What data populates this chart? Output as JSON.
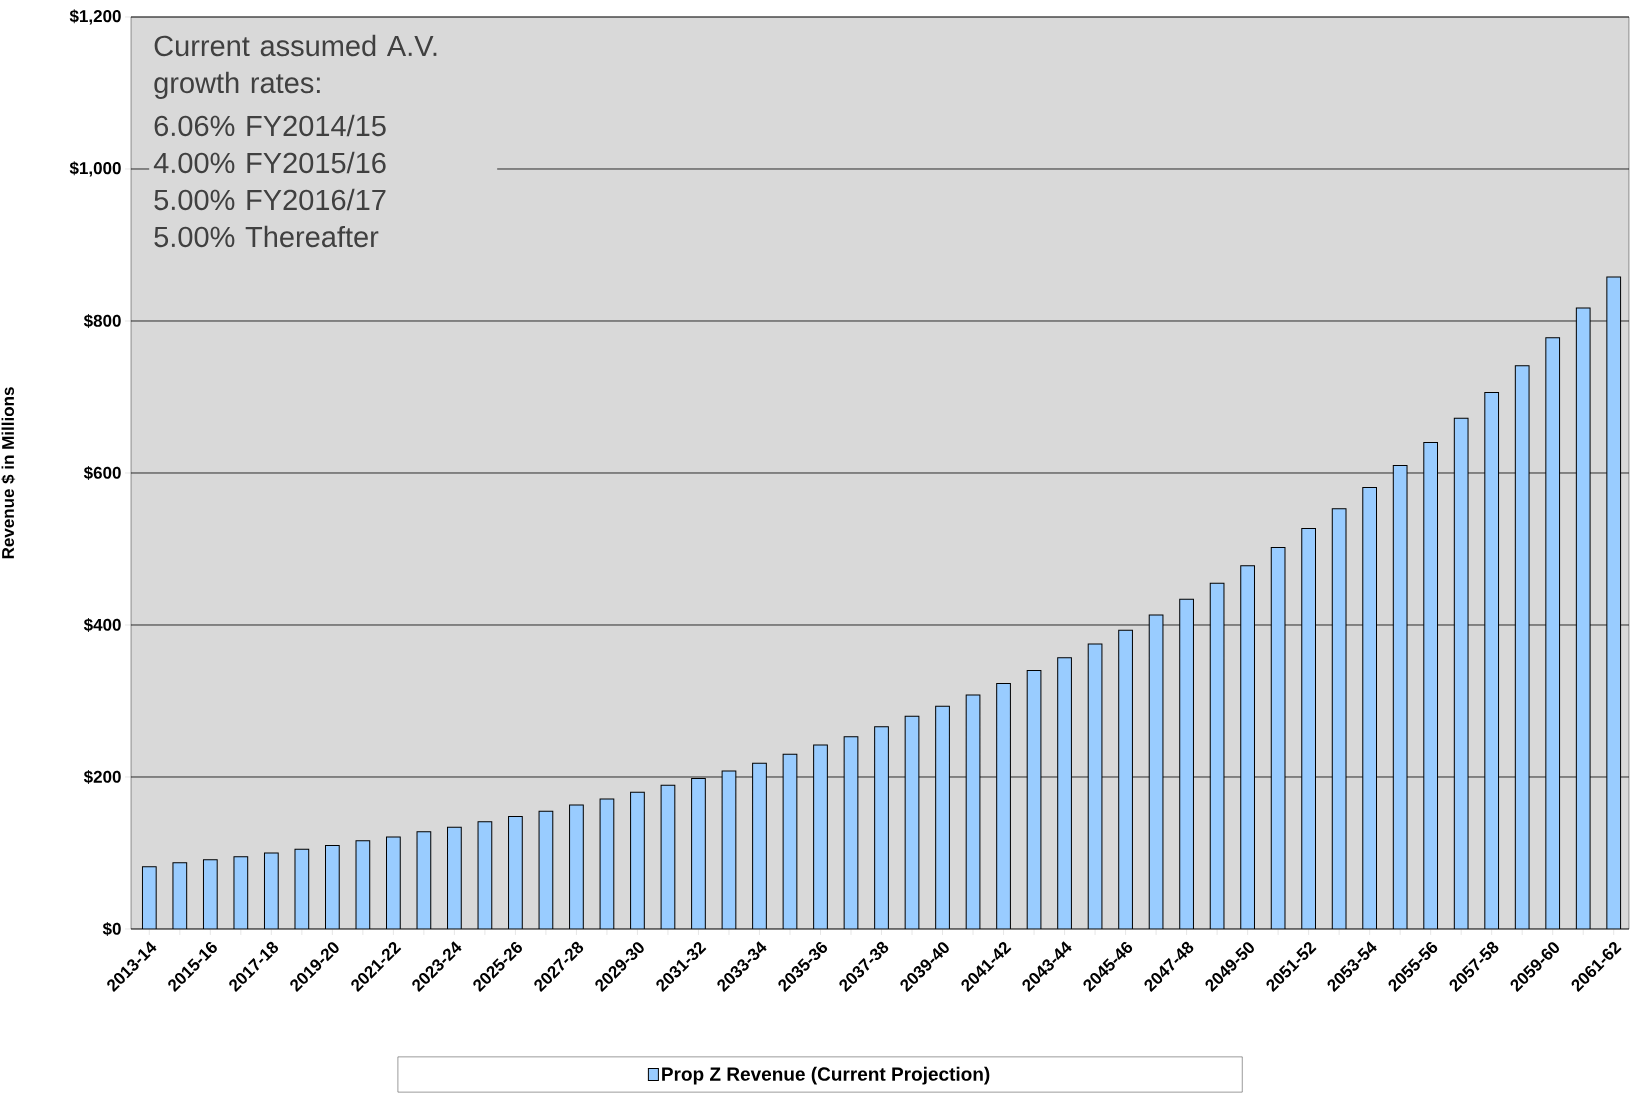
{
  "chart_data": {
    "type": "bar",
    "ylabel": "Revenue $ in Millions",
    "categories": [
      "2013-14",
      null,
      "2015-16",
      null,
      "2017-18",
      null,
      "2019-20",
      null,
      "2021-22",
      null,
      "2023-24",
      null,
      "2025-26",
      null,
      "2027-28",
      null,
      "2029-30",
      null,
      "2031-32",
      null,
      "2033-34",
      null,
      "2035-36",
      null,
      "2037-38",
      null,
      "2039-40",
      null,
      "2041-42",
      null,
      "2043-44",
      null,
      "2045-46",
      null,
      "2047-48",
      null,
      "2049-50",
      null,
      "2051-52",
      null,
      "2053-54",
      null,
      "2055-56",
      null,
      "2057-58",
      null,
      "2059-60",
      null,
      "2061-62"
    ],
    "series": [
      {
        "name": "Prop Z Revenue (Current Projection)",
        "color": "#99ccff",
        "values": [
          82,
          87,
          91,
          95,
          100,
          105,
          110,
          116,
          121,
          128,
          134,
          141,
          148,
          155,
          163,
          171,
          180,
          189,
          198,
          208,
          218,
          230,
          242,
          253,
          266,
          280,
          293,
          308,
          323,
          340,
          357,
          375,
          393,
          413,
          434,
          455,
          478,
          502,
          527,
          553,
          581,
          610,
          640,
          672,
          706,
          741,
          778,
          817,
          858
        ]
      }
    ],
    "ylim": [
      0,
      1200
    ],
    "yticks": [
      {
        "value": 0,
        "label": "$0"
      },
      {
        "value": 200,
        "label": "$200"
      },
      {
        "value": 400,
        "label": "$400"
      },
      {
        "value": 600,
        "label": "$600"
      },
      {
        "value": 800,
        "label": "$800"
      },
      {
        "value": 1000,
        "label": "$1,000"
      },
      {
        "value": 1200,
        "label": "$1,200"
      }
    ],
    "grid": "y",
    "legend": "bottom",
    "annotations": [
      "Current assumed A.V. growth rates:",
      "6.06% FY2014/15",
      "4.00% FY2015/16",
      "5.00% FY2016/17",
      "5.00% Thereafter"
    ]
  }
}
